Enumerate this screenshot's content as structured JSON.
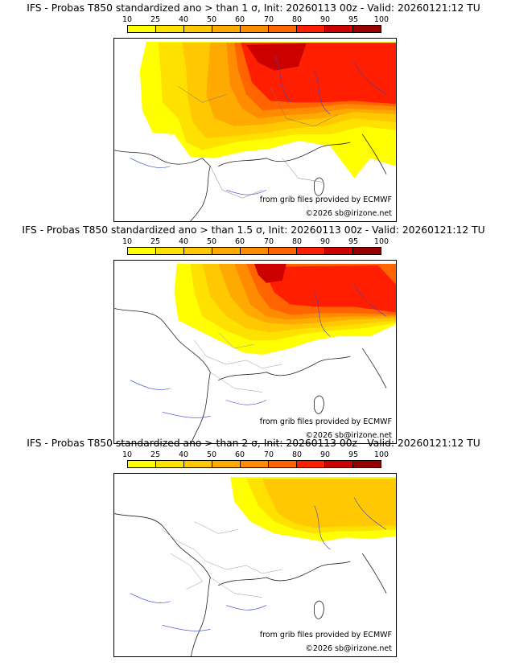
{
  "colorbar": {
    "ticks": [
      "10",
      "25",
      "40",
      "50",
      "60",
      "70",
      "80",
      "90",
      "95",
      "100"
    ],
    "colors": [
      "#ffff00",
      "#ffe100",
      "#ffc800",
      "#ffaa00",
      "#ff8c00",
      "#ff6400",
      "#ff1e00",
      "#cd0000",
      "#960000"
    ]
  },
  "panels": [
    {
      "title": "IFS - Probas T850  standardized ano > than 1 σ, Init: 20260113 00z - Valid: 20260121:12 TU",
      "source": "from grib files provided by ECMWF",
      "copyright": "©2026 sb@irizone.net"
    },
    {
      "title": "IFS - Probas T850  standardized ano > than 1.5 σ, Init: 20260113 00z - Valid: 20260121:12 TU",
      "source": "from grib files provided by ECMWF",
      "copyright": "©2026 sb@irizone.net"
    },
    {
      "title": "IFS - Probas T850  standardized ano > than 2 σ, Init: 20260113 00z - Valid: 20260121:12 TU",
      "source": "from grib files provided by ECMWF",
      "copyright": "©2026 sb@irizone.net"
    }
  ]
}
